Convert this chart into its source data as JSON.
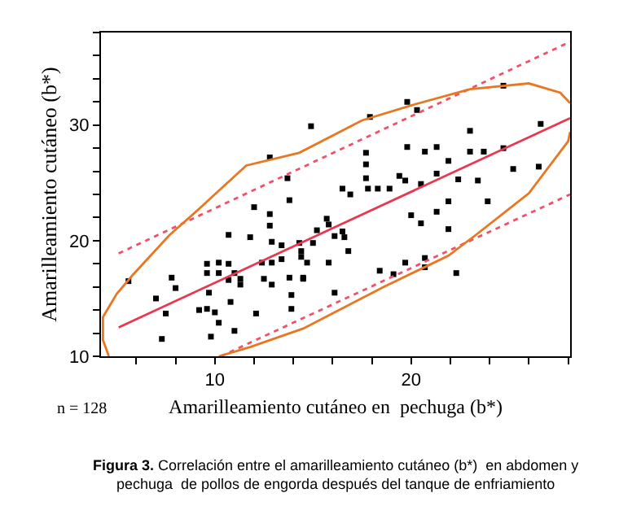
{
  "chart_data": {
    "type": "scatter",
    "xlabel": "Amarilleamiento cutáneo en  pechuga (b*)",
    "ylabel": "Amarilleamiento cutáneo (b*)",
    "annotations": [
      "n = 128",
      "Figura 3.",
      "Correlación entre el amarilleamiento cutáneo (b*)  en abdomen y pechuga  de pollos de engorda después del tanque de enfriamiento"
    ],
    "xlim": [
      4.2,
      28.1
    ],
    "ylim": [
      10,
      38
    ],
    "xticks": [
      {
        "value": 6,
        "label": null
      },
      {
        "value": 8,
        "label": null
      },
      10,
      {
        "value": 12,
        "label": null
      },
      {
        "value": 14,
        "label": null
      },
      {
        "value": 16,
        "label": null
      },
      {
        "value": 18,
        "label": null
      },
      20,
      {
        "value": 22,
        "label": null
      },
      {
        "value": 24,
        "label": null
      },
      {
        "value": 26,
        "label": null
      },
      {
        "value": 28,
        "label": null
      }
    ],
    "yticks": [
      10,
      {
        "value": 12,
        "label": null
      },
      {
        "value": 14,
        "label": null
      },
      {
        "value": 16,
        "label": null
      },
      {
        "value": 18,
        "label": null
      },
      20,
      {
        "value": 22,
        "label": null
      },
      {
        "value": 24,
        "label": null
      },
      {
        "value": 26,
        "label": null
      },
      {
        "value": 28,
        "label": null
      },
      30,
      {
        "value": 32,
        "label": null
      },
      {
        "value": 34,
        "label": null
      },
      {
        "value": 36,
        "label": null
      },
      {
        "value": 38,
        "label": null
      }
    ],
    "series": [
      {
        "color": "#000000",
        "marker": "square",
        "x": [
          14.9,
          17.9,
          19.8,
          20.3,
          24.7,
          23.0,
          26.6,
          12.8,
          17.7,
          19.8,
          20.7,
          21.3,
          23.0,
          23.7,
          24.7,
          17.7,
          21.9,
          26.5,
          25.2,
          13.7,
          17.7,
          19.4,
          21.3,
          22.4,
          23.4,
          19.7,
          20.5,
          16.5,
          17.8,
          18.3,
          18.9,
          16.9,
          13.8,
          12.0,
          21.9,
          23.9,
          12.8,
          15.7,
          15.8,
          20.0,
          21.3,
          20.5,
          21.9,
          10.7,
          11.8,
          12.8,
          15.2,
          16.5,
          16.1,
          16.6,
          12.9,
          13.4,
          14.3,
          15.0,
          14.4,
          14.4,
          16.8,
          13.4,
          12.9,
          14.7,
          15.8,
          9.6,
          10.7,
          19.7,
          18.4,
          20.7,
          7.8,
          9.6,
          13.8,
          14.5,
          19.1,
          10.2,
          12.4,
          20.7,
          5.6,
          10.2,
          11.0,
          10.7,
          11.3,
          11.3,
          12.5,
          12.9,
          14.5,
          22.3,
          8.0,
          9.7,
          13.9,
          16.1,
          7.0,
          10.8,
          7.5,
          9.2,
          9.6,
          10.0,
          12.1,
          13.9,
          10.2,
          11.0,
          9.8,
          7.3
        ],
        "values": [
          29.9,
          30.7,
          32.0,
          31.3,
          33.4,
          29.5,
          30.1,
          27.2,
          27.6,
          28.1,
          27.7,
          28.1,
          27.7,
          27.7,
          28.0,
          26.6,
          26.9,
          26.4,
          26.2,
          25.4,
          25.4,
          25.6,
          25.8,
          25.3,
          25.2,
          25.2,
          24.9,
          24.5,
          24.5,
          24.5,
          24.5,
          24.0,
          23.5,
          22.9,
          23.4,
          23.4,
          22.3,
          21.9,
          21.4,
          22.2,
          22.5,
          21.5,
          21.0,
          20.5,
          20.3,
          21.3,
          20.9,
          20.8,
          20.4,
          20.3,
          19.9,
          19.6,
          19.8,
          19.8,
          19.1,
          18.6,
          19.1,
          18.4,
          18.1,
          18.1,
          18.1,
          18.0,
          18.0,
          18.1,
          17.4,
          17.7,
          16.8,
          17.2,
          16.8,
          16.8,
          17.1,
          18.1,
          18.1,
          18.5,
          16.5,
          17.2,
          17.2,
          16.6,
          16.7,
          16.2,
          16.7,
          16.2,
          16.7,
          17.2,
          15.9,
          15.5,
          15.3,
          15.5,
          15.0,
          14.7,
          13.7,
          14.0,
          14.1,
          13.8,
          13.7,
          14.1,
          12.9,
          12.2,
          11.7,
          11.5
        ]
      },
      {
        "type": "line",
        "color": "#e8384f",
        "line_style": "solid",
        "x": [
          5.1,
          28.1
        ],
        "values": [
          12.5,
          30.6
        ]
      },
      {
        "type": "line",
        "color": "#f0506a",
        "line_style": "dotted",
        "x": [
          5.1,
          28.1
        ],
        "values": [
          18.9,
          37.2
        ]
      },
      {
        "type": "line",
        "color": "#f0506a",
        "line_style": "dotted",
        "x": [
          10.3,
          28.1
        ],
        "values": [
          10.0,
          24.0
        ]
      },
      {
        "type": "line",
        "color": "#e87722",
        "line_style": "solid",
        "x": [
          4.6,
          4.3,
          4.3,
          5.0,
          5.8,
          7.7,
          9.1,
          11.6,
          14.3,
          17.5,
          20.0,
          23.0,
          26.0,
          27.6,
          28.1,
          null,
          28.1,
          28.0,
          26.0,
          23.3,
          21.9,
          20.8,
          18.6,
          14.5,
          11.8,
          10.2
        ],
        "values": [
          10.0,
          11.4,
          13.4,
          15.4,
          17.0,
          20.5,
          22.6,
          26.5,
          27.6,
          30.4,
          31.7,
          33.1,
          33.6,
          32.8,
          31.9,
          null,
          29.4,
          28.6,
          24.1,
          20.5,
          18.7,
          17.8,
          16.0,
          12.4,
          10.8,
          10.0
        ]
      }
    ]
  }
}
